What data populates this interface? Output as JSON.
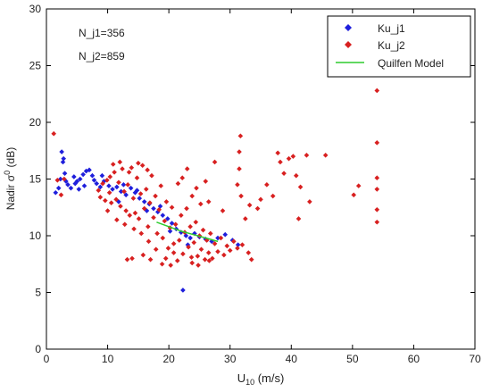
{
  "chart_data": {
    "type": "scatter",
    "xlabel": "U",
    "xlabel_sub": "10",
    "xlabel_unit": " (m/s)",
    "ylabel": "Nadir σ",
    "ylabel_sup": "0",
    "ylabel_unit": " (dB)",
    "xlim": [
      0,
      70
    ],
    "ylim": [
      0,
      30
    ],
    "x_ticks": [
      0,
      10,
      20,
      30,
      40,
      50,
      60,
      70
    ],
    "y_ticks": [
      0,
      5,
      10,
      15,
      20,
      25,
      30
    ],
    "grid": false,
    "legend_position": "top-right",
    "annotations": [
      "N_j1=356",
      "N_j2=859"
    ],
    "series": [
      {
        "name": "Ku_j1",
        "marker": "diamond",
        "color": "#1f1fdc",
        "points": [
          [
            1.5,
            13.8
          ],
          [
            2,
            14.2
          ],
          [
            2.3,
            15.0
          ],
          [
            2.5,
            17.4
          ],
          [
            2.7,
            16.5
          ],
          [
            2.8,
            16.8
          ],
          [
            3,
            15.5
          ],
          [
            3.2,
            14.8
          ],
          [
            3.5,
            14.5
          ],
          [
            4,
            14.2
          ],
          [
            4.5,
            15.2
          ],
          [
            5,
            14.8
          ],
          [
            5.5,
            15.0
          ],
          [
            6,
            15.4
          ],
          [
            6.5,
            15.7
          ],
          [
            7,
            15.8
          ],
          [
            7.5,
            15.3
          ],
          [
            6.2,
            14.4
          ],
          [
            5.3,
            14.1
          ],
          [
            4.7,
            14.6
          ],
          [
            7.8,
            14.9
          ],
          [
            8.2,
            14.6
          ],
          [
            8.8,
            14.3
          ],
          [
            9.4,
            14.8
          ],
          [
            10.2,
            14.4
          ],
          [
            10.8,
            14.1
          ],
          [
            11.5,
            14.3
          ],
          [
            12.2,
            13.9
          ],
          [
            13,
            13.6
          ],
          [
            13.8,
            14.2
          ],
          [
            14.5,
            13.8
          ],
          [
            15.2,
            13.3
          ],
          [
            16,
            13.0
          ],
          [
            16.8,
            12.8
          ],
          [
            17.5,
            12.4
          ],
          [
            18.2,
            12.1
          ],
          [
            19,
            11.8
          ],
          [
            19.8,
            11.5
          ],
          [
            20.5,
            11.1
          ],
          [
            21.2,
            10.6
          ],
          [
            22,
            10.3
          ],
          [
            22.8,
            10.0
          ],
          [
            23.5,
            9.8
          ],
          [
            24.2,
            10.2
          ],
          [
            25,
            9.9
          ],
          [
            26,
            9.7
          ],
          [
            27,
            9.5
          ],
          [
            28,
            9.8
          ],
          [
            29.2,
            10.1
          ],
          [
            30.4,
            9.6
          ],
          [
            31.3,
            9.2
          ],
          [
            22.3,
            5.2
          ],
          [
            18.6,
            12.6
          ],
          [
            14.8,
            14.0
          ],
          [
            12.6,
            14.5
          ],
          [
            9.1,
            15.3
          ],
          [
            11.8,
            13.0
          ],
          [
            16.4,
            12.2
          ],
          [
            20.2,
            10.4
          ],
          [
            23.1,
            9.2
          ]
        ]
      },
      {
        "name": "Ku_j2",
        "marker": "diamond",
        "color": "#d82020",
        "points": [
          [
            1.2,
            19.0
          ],
          [
            1.8,
            14.9
          ],
          [
            2.4,
            13.6
          ],
          [
            2.9,
            15.0
          ],
          [
            8.5,
            14.0
          ],
          [
            8.8,
            13.4
          ],
          [
            9.2,
            14.6
          ],
          [
            9.6,
            13.1
          ],
          [
            9.9,
            14.9
          ],
          [
            10.3,
            13.8
          ],
          [
            10.6,
            12.9
          ],
          [
            10.9,
            16.3
          ],
          [
            11.1,
            15.6
          ],
          [
            11.4,
            13.2
          ],
          [
            11.8,
            14.7
          ],
          [
            12.1,
            12.6
          ],
          [
            12.4,
            15.9
          ],
          [
            12.7,
            13.9
          ],
          [
            13.0,
            12.2
          ],
          [
            13.3,
            14.5
          ],
          [
            13.6,
            11.8
          ],
          [
            13.9,
            16.0
          ],
          [
            14.2,
            13.3
          ],
          [
            14.5,
            12.0
          ],
          [
            14.8,
            15.1
          ],
          [
            15.1,
            11.5
          ],
          [
            15.4,
            13.7
          ],
          [
            15.7,
            16.2
          ],
          [
            16.0,
            12.4
          ],
          [
            16.3,
            14.1
          ],
          [
            16.6,
            10.8
          ],
          [
            16.9,
            12.9
          ],
          [
            17.2,
            15.3
          ],
          [
            17.5,
            11.6
          ],
          [
            17.8,
            13.5
          ],
          [
            18.1,
            10.2
          ],
          [
            18.4,
            12.3
          ],
          [
            18.7,
            14.4
          ],
          [
            19.0,
            9.8
          ],
          [
            19.3,
            11.3
          ],
          [
            19.6,
            13.0
          ],
          [
            19.9,
            8.9
          ],
          [
            20.2,
            10.7
          ],
          [
            20.5,
            12.5
          ],
          [
            20.8,
            9.3
          ],
          [
            21.1,
            11.0
          ],
          [
            21.4,
            7.8
          ],
          [
            21.7,
            9.6
          ],
          [
            22.0,
            11.8
          ],
          [
            22.3,
            8.4
          ],
          [
            22.6,
            10.3
          ],
          [
            22.9,
            12.4
          ],
          [
            23.2,
            9.0
          ],
          [
            23.5,
            10.8
          ],
          [
            23.8,
            7.6
          ],
          [
            24.1,
            9.4
          ],
          [
            24.4,
            11.2
          ],
          [
            24.7,
            8.2
          ],
          [
            25.0,
            10.0
          ],
          [
            25.3,
            8.8
          ],
          [
            25.6,
            10.5
          ],
          [
            25.9,
            7.9
          ],
          [
            26.2,
            9.6
          ],
          [
            26.5,
            8.5
          ],
          [
            26.8,
            10.2
          ],
          [
            27.1,
            8.0
          ],
          [
            27.5,
            9.3
          ],
          [
            28.0,
            8.6
          ],
          [
            28.5,
            9.8
          ],
          [
            29.0,
            8.3
          ],
          [
            29.5,
            9.1
          ],
          [
            30.0,
            8.7
          ],
          [
            30.6,
            9.5
          ],
          [
            31.2,
            8.9
          ],
          [
            32.0,
            9.2
          ],
          [
            33.0,
            8.5
          ],
          [
            33.5,
            7.9
          ],
          [
            13.2,
            7.9
          ],
          [
            14.0,
            8.0
          ],
          [
            15.8,
            8.3
          ],
          [
            17.0,
            7.9
          ],
          [
            18.9,
            7.5
          ],
          [
            20.3,
            7.4
          ],
          [
            21.5,
            14.6
          ],
          [
            22.2,
            15.1
          ],
          [
            23.0,
            15.9
          ],
          [
            23.8,
            13.5
          ],
          [
            24.5,
            14.2
          ],
          [
            25.2,
            12.8
          ],
          [
            26.0,
            14.8
          ],
          [
            26.5,
            13.0
          ],
          [
            27.5,
            16.5
          ],
          [
            28.8,
            12.2
          ],
          [
            31.5,
            17.4
          ],
          [
            31.7,
            18.8
          ],
          [
            31.5,
            15.9
          ],
          [
            31.2,
            14.5
          ],
          [
            31.8,
            13.5
          ],
          [
            32.5,
            11.5
          ],
          [
            33.2,
            12.7
          ],
          [
            34.5,
            12.4
          ],
          [
            35.0,
            13.2
          ],
          [
            36.0,
            14.5
          ],
          [
            37.0,
            13.5
          ],
          [
            37.8,
            17.3
          ],
          [
            38.2,
            16.5
          ],
          [
            38.8,
            15.5
          ],
          [
            39.6,
            16.8
          ],
          [
            40.3,
            17.0
          ],
          [
            40.8,
            15.3
          ],
          [
            41.5,
            14.3
          ],
          [
            41.2,
            11.5
          ],
          [
            42.5,
            17.1
          ],
          [
            43.0,
            13.0
          ],
          [
            45.6,
            17.1
          ],
          [
            50.2,
            13.6
          ],
          [
            51.0,
            14.4
          ],
          [
            54.0,
            22.8
          ],
          [
            54.0,
            18.2
          ],
          [
            54.0,
            15.1
          ],
          [
            54.0,
            14.1
          ],
          [
            54.0,
            12.3
          ],
          [
            54.0,
            11.2
          ],
          [
            10.0,
            12.2
          ],
          [
            11.5,
            11.4
          ],
          [
            12.8,
            11.0
          ],
          [
            14.3,
            10.6
          ],
          [
            15.5,
            10.2
          ],
          [
            16.7,
            9.5
          ],
          [
            17.9,
            8.8
          ],
          [
            19.5,
            8.0
          ],
          [
            20.8,
            8.5
          ],
          [
            23.7,
            8.1
          ],
          [
            24.8,
            7.4
          ],
          [
            26.6,
            7.8
          ],
          [
            10.4,
            15.2
          ],
          [
            12.0,
            16.5
          ],
          [
            13.5,
            15.6
          ],
          [
            15.0,
            16.4
          ],
          [
            16.5,
            15.8
          ]
        ]
      },
      {
        "name": "Quilfen Model",
        "type": "line",
        "color": "#2ecc2e",
        "points": [
          [
            18,
            11.2
          ],
          [
            20,
            10.8
          ],
          [
            22,
            10.4
          ],
          [
            24,
            10.1
          ],
          [
            26,
            9.8
          ],
          [
            28,
            9.5
          ]
        ]
      }
    ]
  }
}
